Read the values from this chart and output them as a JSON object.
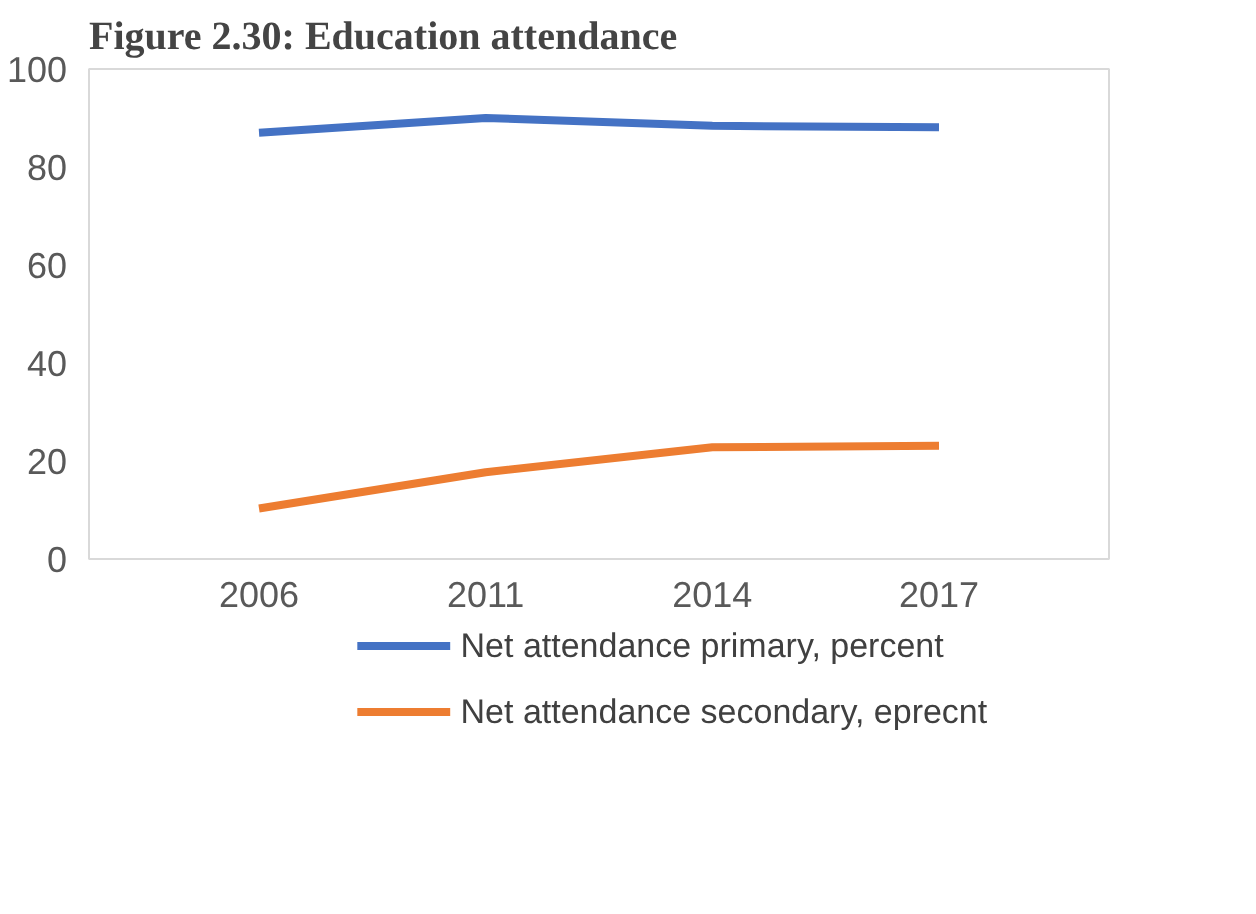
{
  "chart_data": {
    "type": "line",
    "title": "Figure 2.30: Education attendance",
    "categories": [
      "2006",
      "2011",
      "2014",
      "2017"
    ],
    "series": [
      {
        "name": "Net attendance primary, percent",
        "color": "#4472c4",
        "values": [
          87.0,
          90.0,
          88.4,
          88.1
        ]
      },
      {
        "name": "Net attendance secondary, eprecnt",
        "color": "#ed7d31",
        "values": [
          10.3,
          17.7,
          22.8,
          23.1
        ]
      }
    ],
    "ylim": [
      0,
      100
    ],
    "yticks": [
      0,
      20,
      40,
      60,
      80,
      100
    ],
    "grid": false,
    "legend": "bottom",
    "marker": "none",
    "line_style": "solid"
  }
}
